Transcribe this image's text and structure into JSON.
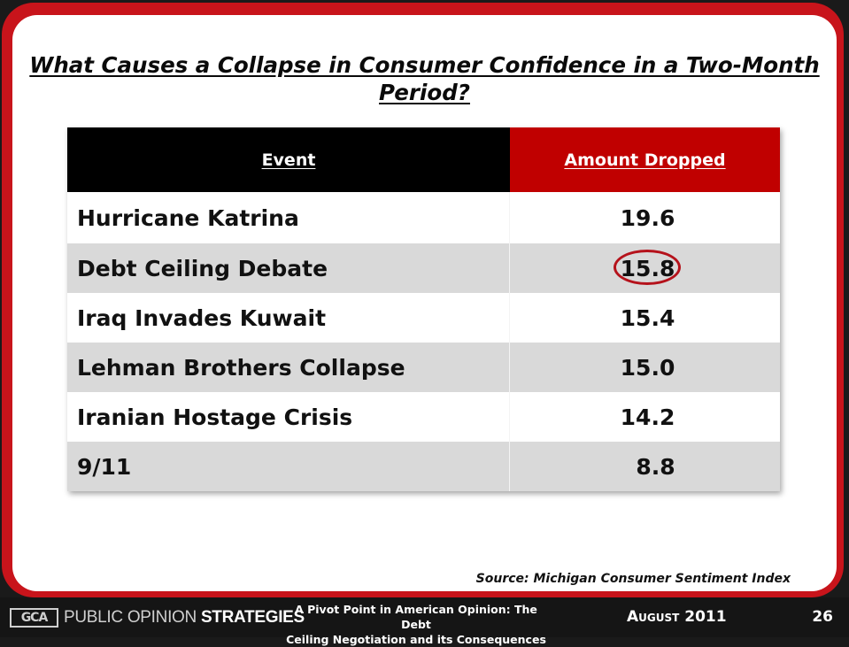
{
  "slide": {
    "title_line1": "What Causes a Collapse in Consumer Confidence in a Two-Month",
    "title_line2": "Period?"
  },
  "table": {
    "headers": {
      "event": "Event",
      "amount": "Amount Dropped"
    },
    "rows": [
      {
        "event": "Hurricane Katrina",
        "amount": "19.6",
        "highlighted": false
      },
      {
        "event": "Debt Ceiling Debate",
        "amount": "15.8",
        "highlighted": true
      },
      {
        "event": "Iraq Invades Kuwait",
        "amount": "15.4",
        "highlighted": false
      },
      {
        "event": "Lehman Brothers Collapse",
        "amount": "15.0",
        "highlighted": false
      },
      {
        "event": "Iranian Hostage Crisis",
        "amount": "14.2",
        "highlighted": false
      },
      {
        "event": "9/11",
        "amount": "8.8",
        "highlighted": false
      }
    ]
  },
  "source": "Source: Michigan Consumer Sentiment Index",
  "footer": {
    "logo_mark": "GCA",
    "logo_text_light": "PUBLIC OPINION ",
    "logo_text_bold": "STRATEGIES",
    "presentation_title_line1": "A Pivot Point in American Opinion: The Debt",
    "presentation_title_line2": "Ceiling Negotiation and its Consequences",
    "date": "August 2011",
    "page_number": "26"
  },
  "colors": {
    "frame_red": "#c8141b",
    "header_red": "#c00000",
    "header_black": "#000000",
    "row_alt_gray": "#d9d9d9",
    "highlight_circle": "#b5121b"
  }
}
